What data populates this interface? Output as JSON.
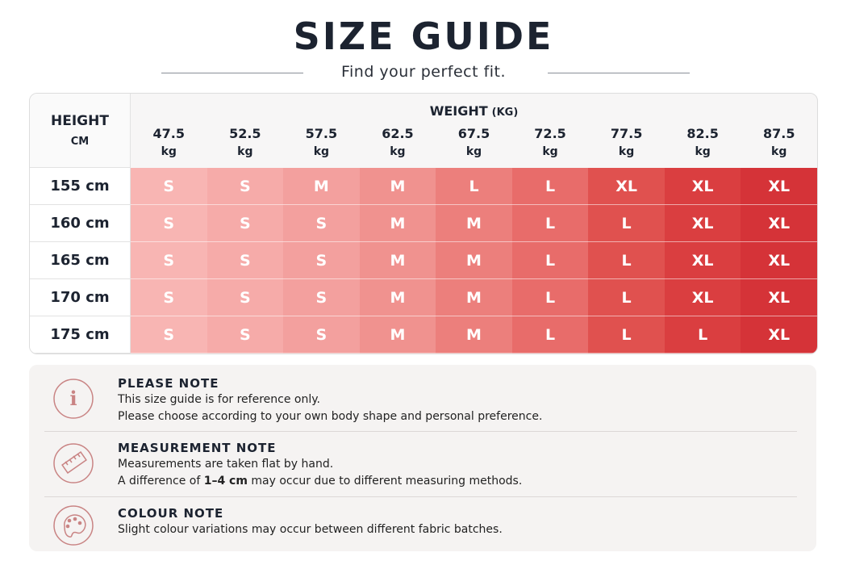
{
  "header": {
    "title": "SIZE GUIDE",
    "subtitle": "Find your perfect fit."
  },
  "table": {
    "row_header": {
      "label": "HEIGHT",
      "unit": "CM"
    },
    "column_group": {
      "label": "WEIGHT",
      "unit": "(KG)"
    },
    "columns": [
      {
        "value": "47.5",
        "unit": "kg"
      },
      {
        "value": "52.5",
        "unit": "kg"
      },
      {
        "value": "57.5",
        "unit": "kg"
      },
      {
        "value": "62.5",
        "unit": "kg"
      },
      {
        "value": "67.5",
        "unit": "kg"
      },
      {
        "value": "72.5",
        "unit": "kg"
      },
      {
        "value": "77.5",
        "unit": "kg"
      },
      {
        "value": "82.5",
        "unit": "kg"
      },
      {
        "value": "87.5",
        "unit": "kg"
      }
    ],
    "rows": [
      {
        "height": "155 cm",
        "sizes": [
          "S",
          "S",
          "M",
          "M",
          "L",
          "L",
          "XL",
          "XL",
          "XL"
        ]
      },
      {
        "height": "160 cm",
        "sizes": [
          "S",
          "S",
          "S",
          "M",
          "M",
          "L",
          "L",
          "XL",
          "XL"
        ]
      },
      {
        "height": "165 cm",
        "sizes": [
          "S",
          "S",
          "S",
          "M",
          "M",
          "L",
          "L",
          "XL",
          "XL"
        ]
      },
      {
        "height": "170 cm",
        "sizes": [
          "S",
          "S",
          "S",
          "M",
          "M",
          "L",
          "L",
          "XL",
          "XL"
        ]
      },
      {
        "height": "175 cm",
        "sizes": [
          "S",
          "S",
          "S",
          "M",
          "M",
          "L",
          "L",
          "L",
          "XL"
        ]
      }
    ]
  },
  "notes": [
    {
      "title": "PLEASE NOTE",
      "lines": [
        [
          "This size guide is for reference only."
        ],
        [
          "Please choose according to your own body shape and personal preference."
        ]
      ]
    },
    {
      "title": "MEASUREMENT NOTE",
      "lines": [
        [
          "Measurements are taken flat by hand."
        ],
        [
          "A difference of ",
          "1–4 cm",
          " may occur due to different measuring methods."
        ]
      ]
    },
    {
      "title": "COLOUR NOTE",
      "lines": [
        [
          "Slight colour variations may occur between different fabric batches."
        ]
      ]
    }
  ]
}
